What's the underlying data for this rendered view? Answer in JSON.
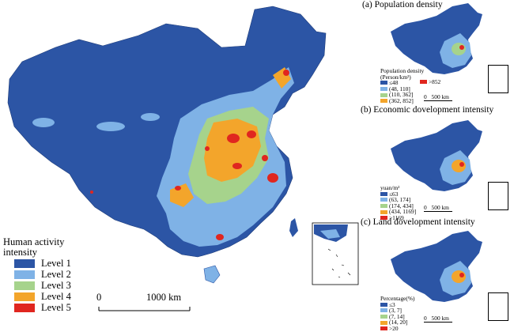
{
  "colors": {
    "level1": "#2c55a5",
    "level2": "#7fb2e6",
    "level3": "#a6d38c",
    "level4": "#f3a52b",
    "level5": "#e0261f",
    "border": "#ffffff",
    "outline": "#000000"
  },
  "main_map": {
    "legend_title": "Human activity intensity",
    "legend_items": [
      {
        "label": "Level 1",
        "color_key": "level1"
      },
      {
        "label": "Level 2",
        "color_key": "level2"
      },
      {
        "label": "Level 3",
        "color_key": "level3"
      },
      {
        "label": "Level 4",
        "color_key": "level4"
      },
      {
        "label": "Level 5",
        "color_key": "level5"
      }
    ],
    "scale_start": "0",
    "scale_end": "1000 km"
  },
  "panels": [
    {
      "title": "(a) Population density",
      "legend_title": "Population density (Person/km²)",
      "legend_left": [
        "≤48",
        "(48, 110]",
        "(110, 362]",
        "(362, 852]"
      ],
      "legend_right": [
        ">852"
      ],
      "scale_start": "0",
      "scale_end": "500 km"
    },
    {
      "title": "(b) Economic dovelopment intensity",
      "legend_title": "yuan/m²",
      "legend_left": [
        "≤63",
        "(63, 174]",
        "(174, 434]",
        "(434, 1169]",
        ">1169"
      ],
      "legend_right": [],
      "scale_start": "0",
      "scale_end": "500 km"
    },
    {
      "title": "(c) Land dovelopment intensity",
      "legend_title": "Percentage(%)",
      "legend_left": [
        "≤3",
        "(3, 7]",
        "(7, 14]",
        "(14, 20]",
        ">20"
      ],
      "legend_right": [],
      "scale_start": "0",
      "scale_end": "500 km"
    }
  ]
}
